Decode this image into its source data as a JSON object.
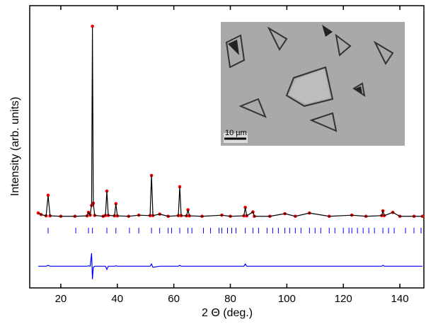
{
  "chart_data": {
    "type": "rietveld",
    "xlabel": "2 Θ (deg.)",
    "ylabel": "Intensity (arb. units)",
    "inset_scale_label": "10 µm",
    "xlim": [
      9,
      148.5
    ],
    "ylim": [
      -30,
      100
    ],
    "xticks": [
      20,
      40,
      60,
      80,
      100,
      120,
      140
    ],
    "x": [
      12,
      13,
      14.8,
      15.5,
      16.2,
      20,
      25,
      29.3,
      29.8,
      30.4,
      30.9,
      31.2,
      31.5,
      32,
      35,
      35.8,
      36.3,
      36.8,
      39,
      39.5,
      40,
      44,
      47.6,
      51.6,
      52.1,
      52.6,
      55,
      58,
      61.6,
      62.1,
      62.6,
      64.5,
      65,
      65.5,
      70,
      77,
      80,
      84.8,
      85.3,
      85.8,
      88,
      88.5,
      94,
      99.3,
      103,
      108,
      115,
      123,
      128,
      133.6,
      134,
      134.5,
      137.5,
      140,
      145,
      148
    ],
    "observed": [
      4.5,
      3.8,
      3.2,
      12.7,
      3.2,
      3,
      3,
      3.2,
      4.8,
      3.5,
      8,
      90.5,
      9,
      3.4,
      3,
      3.4,
      14.6,
      3.4,
      3.2,
      8.8,
      3.2,
      3,
      3.5,
      3.3,
      21.8,
      3.3,
      4,
      3,
      3.3,
      16.6,
      3.3,
      3.2,
      6,
      3.2,
      3,
      3.5,
      3,
      3.2,
      7.1,
      3.2,
      5,
      3,
      3,
      4.2,
      3,
      4.5,
      3,
      3.5,
      3,
      3.3,
      5.5,
      3.3,
      4.8,
      3,
      3,
      3
    ],
    "calculated": [
      4.5,
      3.8,
      3.2,
      12.5,
      3.2,
      3,
      3,
      3.2,
      4.7,
      3.5,
      8.5,
      90,
      9,
      3.4,
      3,
      3.4,
      14.5,
      3.4,
      3.2,
      8.7,
      3.2,
      3,
      3.5,
      3.3,
      22,
      3.3,
      4,
      3,
      3.3,
      16.5,
      3.3,
      3.2,
      6,
      3.2,
      3,
      3.5,
      3,
      3.2,
      7,
      3.2,
      5,
      3,
      3,
      4.2,
      3,
      4.5,
      3,
      3.5,
      3,
      3.3,
      5.4,
      3.3,
      4.8,
      3,
      3,
      3
    ],
    "difference": [
      -20,
      -20,
      -20,
      -19.6,
      -20,
      -20,
      -20,
      -20,
      -19.8,
      -20,
      -14,
      -26,
      -20.5,
      -20,
      -20,
      -20,
      -21.5,
      -20,
      -20,
      -19.8,
      -20,
      -20,
      -20,
      -20,
      -19,
      -20.5,
      -20,
      -20,
      -20,
      -19.6,
      -20,
      -20,
      -20,
      -20,
      -20,
      -20,
      -20,
      -20,
      -19,
      -20,
      -20,
      -20,
      -20,
      -20,
      -20,
      -20,
      -20,
      -20,
      -20,
      -20,
      -19.6,
      -20,
      -20,
      -20,
      -20,
      -20
    ],
    "bragg_positions": [
      15.5,
      25.3,
      29.8,
      31.2,
      36.3,
      39.5,
      44.3,
      47.6,
      52.1,
      55,
      58,
      59.2,
      62.1,
      65,
      66.4,
      70.5,
      73,
      76,
      77,
      79,
      80.5,
      82,
      85.3,
      88,
      90,
      93,
      95,
      97,
      99.3,
      101,
      103,
      105,
      108,
      110,
      112,
      115,
      117,
      120,
      122,
      123,
      125,
      127,
      129,
      131,
      134,
      136,
      138,
      142,
      145,
      147.5
    ],
    "observed_color": "#ff0000",
    "calculated_color": "#000000",
    "difference_color": "#0000ff",
    "bragg_color": "#0000ff"
  }
}
